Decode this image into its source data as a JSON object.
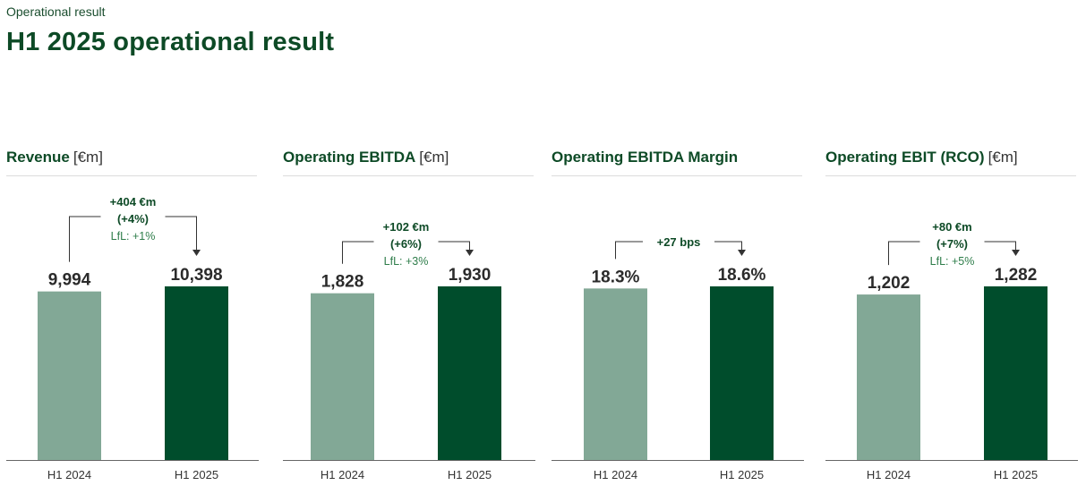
{
  "header": {
    "section_label": "Operational result",
    "title": "H1 2025 operational result"
  },
  "colors": {
    "bar_prior": "#82a896",
    "bar_current": "#004d2c",
    "axis": "#666666",
    "connector": "#333333"
  },
  "chart_data": [
    {
      "type": "bar",
      "title": "Revenue",
      "unit": "[€m]",
      "categories": [
        "H1 2024",
        "H1 2025"
      ],
      "values": [
        9994,
        10398
      ],
      "value_labels": [
        "9,994",
        "10,398"
      ],
      "delta": {
        "line1": "+404 €m",
        "line2": "(+4%)",
        "lfl": "LfL: +1%"
      }
    },
    {
      "type": "bar",
      "title": "Operating EBITDA",
      "unit": "[€m]",
      "categories": [
        "H1 2024",
        "H1 2025"
      ],
      "values": [
        1828,
        1930
      ],
      "value_labels": [
        "1,828",
        "1,930"
      ],
      "delta": {
        "line1": "+102 €m",
        "line2": "(+6%)",
        "lfl": "LfL: +3%"
      }
    },
    {
      "type": "bar",
      "title": "Operating EBITDA Margin",
      "unit": "",
      "categories": [
        "H1 2024",
        "H1 2025"
      ],
      "values": [
        18.3,
        18.6
      ],
      "value_labels": [
        "18.3%",
        "18.6%"
      ],
      "delta": {
        "line1": "+27 bps"
      }
    },
    {
      "type": "bar",
      "title": "Operating EBIT (RCO)",
      "unit": "[€m]",
      "categories": [
        "H1 2024",
        "H1 2025"
      ],
      "values": [
        1202,
        1282
      ],
      "value_labels": [
        "1,202",
        "1,282"
      ],
      "delta": {
        "line1": "+80 €m",
        "line2": "(+7%)",
        "lfl": "LfL: +5%"
      }
    }
  ]
}
